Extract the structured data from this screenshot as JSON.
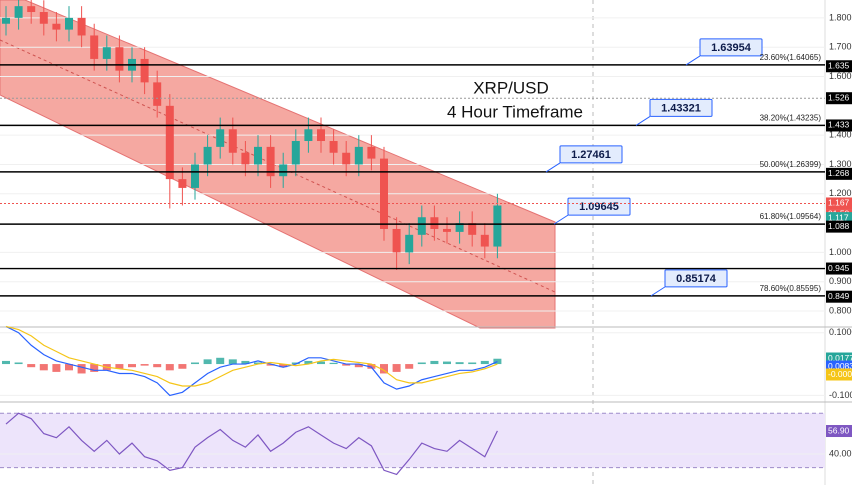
{
  "chart_data": [
    {
      "type": "candlestick",
      "title": "XRP/USD",
      "subtitle": "4 Hour Timeframe",
      "ylim": [
        0.749,
        1.861
      ],
      "yticks": [
        {
          "value": 1.8,
          "label": "1.800"
        },
        {
          "value": 1.7,
          "label": "1.700"
        },
        {
          "value": 1.6,
          "label": "1.600"
        },
        {
          "value": 1.4,
          "label": "1.400"
        },
        {
          "value": 1.3,
          "label": "1.300"
        },
        {
          "value": 1.2,
          "label": "1.200"
        },
        {
          "value": 1.0,
          "label": "1.000"
        },
        {
          "value": 0.9,
          "label": "0.900"
        },
        {
          "value": 0.8,
          "label": "0.800"
        }
      ],
      "grid": true,
      "up_color": "#26a69a",
      "down_color": "#ef5350",
      "open": [
        1.78,
        1.8,
        1.84,
        1.82,
        1.78,
        1.76,
        1.8,
        1.74,
        1.66,
        1.7,
        1.62,
        1.66,
        1.58,
        1.5,
        1.25,
        1.22,
        1.3,
        1.36,
        1.42,
        1.34,
        1.3,
        1.36,
        1.26,
        1.3,
        1.38,
        1.42,
        1.38,
        1.34,
        1.3,
        1.36,
        1.32,
        1.08,
        1.0,
        1.06,
        1.12,
        1.08,
        1.07,
        1.1,
        1.06,
        1.02
      ],
      "high": [
        1.84,
        1.88,
        1.88,
        1.86,
        1.82,
        1.84,
        1.84,
        1.78,
        1.74,
        1.74,
        1.7,
        1.7,
        1.62,
        1.54,
        1.29,
        1.34,
        1.4,
        1.46,
        1.46,
        1.38,
        1.4,
        1.4,
        1.34,
        1.42,
        1.46,
        1.46,
        1.42,
        1.38,
        1.4,
        1.4,
        1.36,
        1.12,
        1.1,
        1.16,
        1.16,
        1.12,
        1.14,
        1.14,
        1.1,
        1.2
      ],
      "low": [
        1.74,
        1.76,
        1.78,
        1.74,
        1.72,
        1.72,
        1.7,
        1.62,
        1.62,
        1.58,
        1.58,
        1.54,
        1.46,
        1.15,
        1.16,
        1.18,
        1.26,
        1.32,
        1.3,
        1.26,
        1.26,
        1.22,
        1.22,
        1.26,
        1.34,
        1.34,
        1.3,
        1.26,
        1.26,
        1.28,
        1.04,
        0.94,
        0.96,
        1.02,
        1.04,
        1.03,
        1.03,
        1.02,
        0.98,
        0.98
      ],
      "close": [
        1.8,
        1.84,
        1.82,
        1.78,
        1.76,
        1.8,
        1.74,
        1.66,
        1.7,
        1.62,
        1.66,
        1.58,
        1.5,
        1.25,
        1.22,
        1.3,
        1.36,
        1.42,
        1.34,
        1.3,
        1.36,
        1.26,
        1.3,
        1.38,
        1.42,
        1.38,
        1.34,
        1.3,
        1.36,
        1.32,
        1.08,
        1.0,
        1.06,
        1.12,
        1.08,
        1.07,
        1.1,
        1.06,
        1.02,
        1.16
      ],
      "levels": [
        {
          "value": 1.63954,
          "fib": "23.60%(1.64065)"
        },
        {
          "value": 1.43321,
          "fib": "38.20%(1.43235)"
        },
        {
          "value": 1.27461,
          "fib": "50.00%(1.26399)"
        },
        {
          "value": 1.09645,
          "fib": "61.80%(1.09564)"
        },
        {
          "value": 0.85174,
          "fib": "78.60%(0.85595)"
        }
      ],
      "axis_tags": [
        {
          "value": 1.635,
          "color": "#000000",
          "line": "none"
        },
        {
          "value": 1.526,
          "color": "#000000",
          "line": "dotted"
        },
        {
          "value": 1.433,
          "color": "#000000",
          "line": "none"
        },
        {
          "value": 1.268,
          "color": "#000000",
          "line": "none"
        },
        {
          "value": 1.167,
          "color": "#ef5350",
          "line": "dotted"
        },
        {
          "value": 1.117,
          "color": "#26a69a",
          "line": "none"
        },
        {
          "value": 1.088,
          "color": "#000000",
          "line": "none"
        },
        {
          "value": 0.945,
          "color": "#000000",
          "line": "solid"
        },
        {
          "value": 0.849,
          "color": "#000000",
          "line": "none"
        }
      ],
      "countdown": "01:50"
    },
    {
      "type": "macd",
      "ylim": [
        -0.121,
        0.115
      ],
      "yticks": [
        {
          "value": 0.1,
          "label": "0.1000"
        },
        {
          "value": -0.1,
          "label": "-0.100"
        }
      ],
      "up_color": "#26a69a",
      "down_color": "#ef5350",
      "histogram": [
        0.01,
        0.005,
        -0.01,
        -0.02,
        -0.025,
        -0.02,
        -0.03,
        -0.025,
        -0.02,
        -0.015,
        -0.01,
        -0.005,
        -0.01,
        -0.02,
        -0.015,
        0.005,
        0.015,
        0.02,
        0.015,
        0.01,
        0.005,
        -0.005,
        -0.01,
        0.005,
        0.01,
        0.008,
        0.004,
        -0.005,
        -0.01,
        -0.015,
        -0.03,
        -0.025,
        -0.015,
        0.005,
        0.01,
        0.008,
        0.006,
        0.005,
        0.01,
        0.017
      ],
      "series": [
        {
          "color": "#2962ff",
          "values": [
            0.12,
            0.1,
            0.06,
            0.03,
            0.01,
            0.0,
            -0.01,
            -0.02,
            -0.02,
            -0.03,
            -0.03,
            -0.04,
            -0.06,
            -0.1,
            -0.09,
            -0.06,
            -0.03,
            -0.01,
            0.0,
            0.0,
            0.01,
            0.0,
            -0.01,
            0.0,
            0.02,
            0.02,
            0.01,
            0.0,
            0.0,
            -0.01,
            -0.06,
            -0.08,
            -0.07,
            -0.05,
            -0.04,
            -0.03,
            -0.02,
            -0.02,
            -0.01,
            0.008
          ]
        },
        {
          "color": "#f5c518",
          "values": [
            0.12,
            0.11,
            0.09,
            0.06,
            0.04,
            0.02,
            0.01,
            0.0,
            -0.01,
            -0.015,
            -0.02,
            -0.03,
            -0.04,
            -0.06,
            -0.07,
            -0.07,
            -0.06,
            -0.04,
            -0.02,
            -0.01,
            0.0,
            0.005,
            0.0,
            -0.005,
            0.0,
            0.01,
            0.015,
            0.01,
            0.005,
            0.0,
            -0.02,
            -0.05,
            -0.06,
            -0.06,
            -0.05,
            -0.04,
            -0.03,
            -0.025,
            -0.015,
            0.0
          ]
        }
      ],
      "axis_tags": [
        {
          "value": 0.0177,
          "color": "#26a69a"
        },
        {
          "value": 0.0083,
          "color": "#2962ff"
        },
        {
          "value": 0,
          "label": "-0.000",
          "color": "#f5c518"
        }
      ]
    },
    {
      "type": "line",
      "ylim": [
        17.2,
        77.5
      ],
      "yticks": [
        {
          "value": 40,
          "label": "40.00"
        }
      ],
      "bands": [
        30,
        70
      ],
      "color": "#7e57c2",
      "values": [
        62,
        70,
        66,
        55,
        52,
        60,
        50,
        42,
        50,
        40,
        48,
        38,
        35,
        28,
        30,
        45,
        52,
        58,
        50,
        45,
        54,
        42,
        48,
        56,
        60,
        54,
        48,
        44,
        52,
        46,
        28,
        25,
        36,
        48,
        44,
        42,
        50,
        44,
        38,
        57
      ],
      "axis_tags": [
        {
          "value": 56.9,
          "label": "56.90",
          "color": "#7e57c2"
        }
      ]
    }
  ]
}
